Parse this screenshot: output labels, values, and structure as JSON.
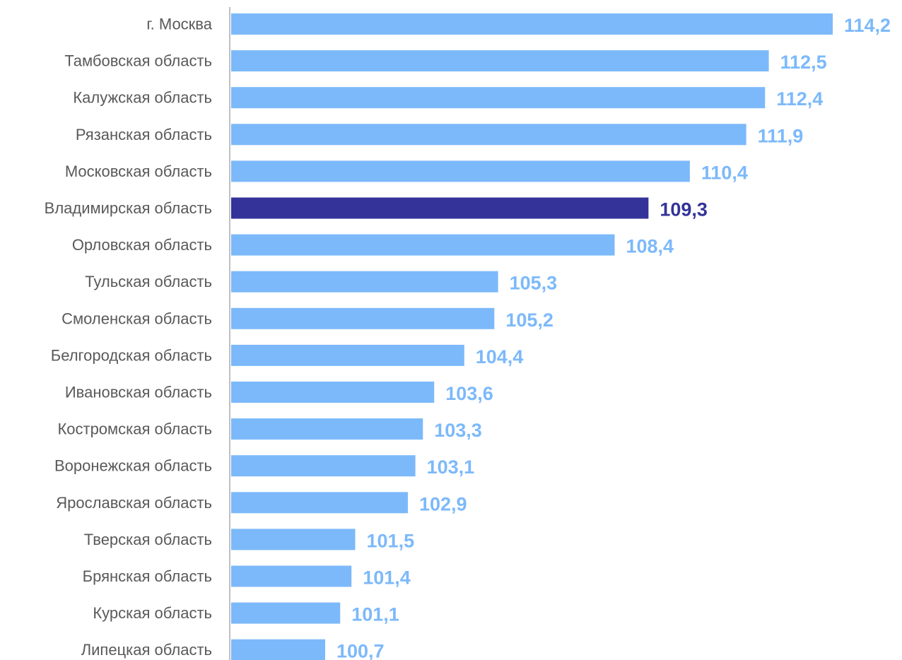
{
  "chart_data": {
    "type": "bar",
    "orientation": "horizontal",
    "categories": [
      "г. Москва",
      "Тамбовская область",
      "Калужская область",
      "Рязанская область",
      "Московская область",
      "Владимирская область",
      "Орловская область",
      "Тульская область",
      "Смоленская область",
      "Белгородская область",
      "Ивановская область",
      "Костромская область",
      "Воронежская область",
      "Ярославская область",
      "Тверская область",
      "Брянская область",
      "Курская область",
      "Липецкая область"
    ],
    "values": [
      114.2,
      112.5,
      112.4,
      111.9,
      110.4,
      109.3,
      108.4,
      105.3,
      105.2,
      104.4,
      103.6,
      103.3,
      103.1,
      102.9,
      101.5,
      101.4,
      101.1,
      100.7
    ],
    "value_labels": [
      "114,2",
      "112,5",
      "112,4",
      "111,9",
      "110,4",
      "109,3",
      "108,4",
      "105,3",
      "105,2",
      "104,4",
      "103,6",
      "103,3",
      "103,1",
      "102,9",
      "101,5",
      "101,4",
      "101,1",
      "100,7"
    ],
    "highlight_index": 5,
    "x_range": [
      98.2,
      114.2
    ],
    "grid": false,
    "legend": "none",
    "colors": {
      "bar": "#7CB9FA",
      "highlight_bar": "#333399",
      "axis": "#BFBFBF",
      "category_text": "#595959"
    }
  }
}
